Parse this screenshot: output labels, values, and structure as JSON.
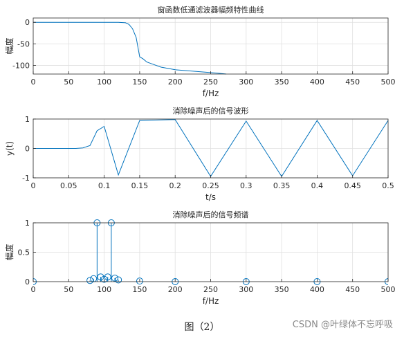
{
  "caption": "图（2）",
  "watermark": "CSDN @叶绿体不忘呼吸",
  "colors": {
    "line": "#0072BD",
    "grid": "#dfdfdf",
    "axis": "#262626"
  },
  "chart_data": [
    {
      "id": "c1",
      "type": "line",
      "title": "窗函数低通滤波器幅频特性曲线",
      "xlabel": "f/Hz",
      "ylabel": "幅度",
      "xlim": [
        0,
        500
      ],
      "ylim": [
        -120,
        10
      ],
      "xticks": [
        0,
        50,
        100,
        150,
        200,
        250,
        300,
        350,
        400,
        450,
        500
      ],
      "yticks": [
        -100,
        -50,
        0
      ],
      "grid": true,
      "series": [
        {
          "x": [
            0,
            120,
            130,
            135,
            140,
            145,
            150,
            155,
            160,
            170,
            180,
            200,
            230,
            260,
            272
          ],
          "values": [
            0,
            0,
            -1,
            -5,
            -15,
            -35,
            -80,
            -85,
            -92,
            -98,
            -104,
            -110,
            -114,
            -118,
            -120
          ]
        }
      ]
    },
    {
      "id": "c2",
      "type": "line",
      "title": "消除噪声后的信号波形",
      "xlabel": "t/s",
      "ylabel": "y(t)",
      "xlim": [
        0,
        0.5
      ],
      "ylim": [
        -1,
        1
      ],
      "xticks": [
        0,
        0.05,
        0.1,
        0.15,
        0.2,
        0.25,
        0.3,
        0.35,
        0.4,
        0.45,
        0.5
      ],
      "yticks": [
        -1,
        0,
        1
      ],
      "grid": true,
      "series": [
        {
          "x": [
            0,
            0.06,
            0.07,
            0.08,
            0.09,
            0.1,
            0.12,
            0.15,
            0.2,
            0.25,
            0.3,
            0.35,
            0.4,
            0.45,
            0.5
          ],
          "values": [
            0,
            0,
            0.02,
            0.1,
            0.6,
            0.75,
            -0.9,
            0.95,
            0.98,
            -0.95,
            0.93,
            -0.95,
            0.95,
            -0.93,
            0.95
          ]
        }
      ]
    },
    {
      "id": "c3",
      "type": "scatter",
      "title": "消除噪声后的信号频谱",
      "xlabel": "f/Hz",
      "ylabel": "幅度",
      "xlim": [
        0,
        500
      ],
      "ylim": [
        0,
        1
      ],
      "xticks": [
        0,
        50,
        100,
        150,
        200,
        250,
        300,
        350,
        400,
        450,
        500
      ],
      "yticks": [
        0,
        0.5,
        1
      ],
      "grid": true,
      "series": [
        {
          "x": [
            0,
            80,
            85,
            90,
            95,
            100,
            105,
            110,
            115,
            120,
            150,
            200,
            300,
            400,
            500
          ],
          "values": [
            0,
            0.02,
            0.05,
            1,
            0.08,
            0.04,
            0.08,
            1,
            0.06,
            0.03,
            0.01,
            0,
            0,
            0,
            0
          ]
        }
      ]
    }
  ]
}
